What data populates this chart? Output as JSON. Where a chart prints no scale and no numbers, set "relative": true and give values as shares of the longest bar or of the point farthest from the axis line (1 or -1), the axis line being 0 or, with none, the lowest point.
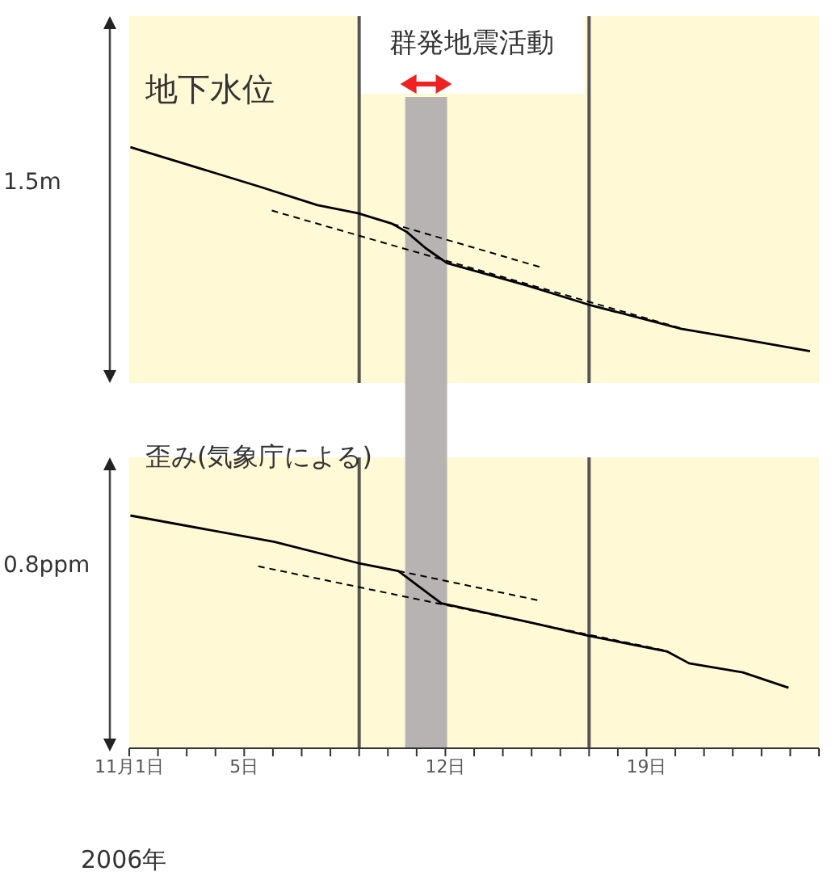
{
  "chart_data": [
    {
      "type": "line",
      "title": "地下水位",
      "ylabel": "1.5m",
      "relative": true,
      "xlim": [
        1,
        25
      ],
      "tick_labels": false,
      "legend": false,
      "grid": false,
      "series": [
        {
          "color": "#000000",
          "line_style": "solid",
          "x": [
            1.04,
            5.49,
            7.55,
            8.96,
            10.15,
            10.66,
            11.31,
            12.06,
            14.87,
            16.96,
            20.2,
            22.35,
            24.69
          ],
          "values": [
            1.0,
            0.834,
            0.754,
            0.72,
            0.675,
            0.64,
            0.572,
            0.508,
            0.412,
            0.333,
            0.23,
            0.185,
            0.135
          ]
        },
        {
          "type": "line",
          "color": "#000000",
          "line_style": "dashed",
          "x": [
            10.15,
            15.42
          ],
          "values": [
            0.675,
            0.487
          ]
        },
        {
          "type": "line",
          "color": "#000000",
          "line_style": "dashed",
          "x": [
            5.96,
            20.2
          ],
          "values": [
            0.731,
            0.232
          ]
        }
      ],
      "bands": [
        {
          "axis": "x",
          "from": 10.6,
          "to": 12.06,
          "label": "群発地震活動",
          "color": "#b8b3b3"
        }
      ],
      "ref_lines": [
        {
          "axis": "x",
          "value": 9,
          "color": "#555555"
        },
        {
          "axis": "x",
          "value": 17,
          "color": "#555555"
        }
      ]
    },
    {
      "type": "line",
      "title": "歪み(気象庁による)",
      "ylabel": "0.8ppm",
      "xlabel": "2006年",
      "relative": true,
      "xlim": [
        1,
        25
      ],
      "tick_labels": "x",
      "legend": false,
      "grid": false,
      "xticks": [
        {
          "value": 1,
          "label": "11月1日"
        },
        {
          "value": 2,
          "label": null
        },
        {
          "value": 3,
          "label": null
        },
        {
          "value": 4,
          "label": null
        },
        {
          "value": 5,
          "label": "5日"
        },
        {
          "value": 6,
          "label": null
        },
        {
          "value": 7,
          "label": null
        },
        {
          "value": 8,
          "label": null
        },
        {
          "value": 9,
          "label": null
        },
        {
          "value": 10,
          "label": null
        },
        {
          "value": 11,
          "label": null
        },
        {
          "value": 12,
          "label": "12日"
        },
        {
          "value": 13,
          "label": null
        },
        {
          "value": 14,
          "label": null
        },
        {
          "value": 15,
          "label": null
        },
        {
          "value": 16,
          "label": null
        },
        {
          "value": 17,
          "label": null
        },
        {
          "value": 18,
          "label": null
        },
        {
          "value": 19,
          "label": "19日"
        },
        {
          "value": 20,
          "label": null
        },
        {
          "value": 21,
          "label": null
        },
        {
          "value": 22,
          "label": null
        },
        {
          "value": 23,
          "label": null
        },
        {
          "value": 24,
          "label": null
        },
        {
          "value": 25,
          "label": null
        }
      ],
      "series": [
        {
          "color": "#000000",
          "line_style": "solid",
          "x": [
            1.04,
            6.06,
            8.96,
            10.36,
            11.11,
            11.86,
            14.87,
            16.96,
            19.73,
            20.48,
            22.35,
            23.94
          ],
          "values": [
            1.0,
            0.887,
            0.796,
            0.762,
            0.692,
            0.623,
            0.543,
            0.484,
            0.415,
            0.365,
            0.326,
            0.26
          ]
        },
        {
          "type": "line",
          "color": "#000000",
          "line_style": "dashed",
          "x": [
            10.36,
            15.33
          ],
          "values": [
            0.762,
            0.633
          ]
        },
        {
          "type": "line",
          "color": "#000000",
          "line_style": "dashed",
          "x": [
            5.49,
            19.73
          ],
          "values": [
            0.782,
            0.418
          ]
        }
      ],
      "bands": [
        {
          "axis": "x",
          "from": 10.6,
          "to": 12.06,
          "color": "#b8b3b3"
        }
      ],
      "ref_lines": [
        {
          "axis": "x",
          "value": 9,
          "color": "#555555"
        },
        {
          "axis": "x",
          "value": 17,
          "color": "#555555"
        }
      ]
    }
  ]
}
